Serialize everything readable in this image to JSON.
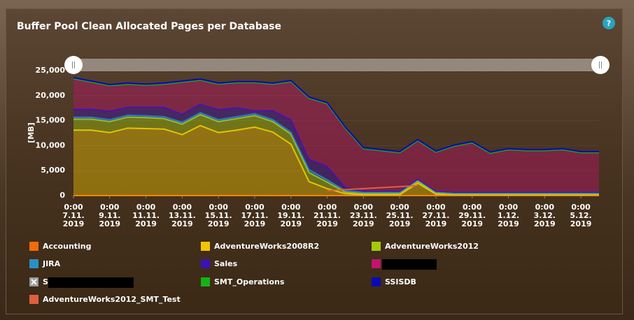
{
  "chart_data": {
    "type": "stacked-area",
    "title": "Buffer Pool Clean Allocated Pages per Database",
    "help": "?",
    "y_label": "[MB]",
    "ylim": [
      0,
      25000
    ],
    "yticks": [
      0,
      {
        "value": 5000,
        "label": "5,000"
      },
      {
        "value": 10000,
        "label": "10,000"
      },
      {
        "value": 15000,
        "label": "15,000"
      },
      {
        "value": 20000,
        "label": "20,000"
      },
      {
        "value": 25000,
        "label": "25,000"
      }
    ],
    "grid": true,
    "x": [
      "2019-11-07",
      "2019-11-08",
      "2019-11-09",
      "2019-11-10",
      "2019-11-11",
      "2019-11-12",
      "2019-11-13",
      "2019-11-14",
      "2019-11-15",
      "2019-11-16",
      "2019-11-17",
      "2019-11-18",
      "2019-11-19",
      "2019-11-20",
      "2019-11-21",
      "2019-11-22",
      "2019-11-23",
      "2019-11-24",
      "2019-11-25",
      "2019-11-26",
      "2019-11-27",
      "2019-11-28",
      "2019-11-29",
      "2019-11-30",
      "2019-12-01",
      "2019-12-02",
      "2019-12-03",
      "2019-12-04",
      "2019-12-05",
      "2019-12-06"
    ],
    "xticks": [
      {
        "value": "2019-11-07",
        "label": "0:00\n7.11.\n2019"
      },
      {
        "value": "2019-11-09",
        "label": "0:00\n9.11.\n2019"
      },
      {
        "value": "2019-11-11",
        "label": "0:00\n11.11.\n2019"
      },
      {
        "value": "2019-11-13",
        "label": "0:00\n13.11.\n2019"
      },
      {
        "value": "2019-11-15",
        "label": "0:00\n15.11.\n2019"
      },
      {
        "value": "2019-11-17",
        "label": "0:00\n17.11.\n2019"
      },
      {
        "value": "2019-11-19",
        "label": "0:00\n19.11.\n2019"
      },
      {
        "value": "2019-11-21",
        "label": "0:00\n21.11.\n2019"
      },
      {
        "value": "2019-11-23",
        "label": "0:00\n23.11.\n2019"
      },
      {
        "value": "2019-11-25",
        "label": "0:00\n25.11.\n2019"
      },
      {
        "value": "2019-11-27",
        "label": "0:00\n27.11.\n2019"
      },
      {
        "value": "2019-11-29",
        "label": "0:00\n29.11.\n2019"
      },
      {
        "value": "2019-12-01",
        "label": "0:00\n1.12.\n2019"
      },
      {
        "value": "2019-12-03",
        "label": "0:00\n3.12.\n2019"
      },
      {
        "value": "2019-12-05",
        "label": "0:00\n5.12.\n2019"
      }
    ],
    "series": [
      {
        "name": "Accounting",
        "color": "#f26b0a",
        "values": [
          0,
          0,
          0,
          0,
          0,
          0,
          0,
          0,
          0,
          0,
          0,
          0,
          0,
          0,
          0,
          0,
          0,
          0,
          0,
          0,
          0,
          0,
          0,
          0,
          0,
          0,
          0,
          0,
          0,
          0
        ]
      },
      {
        "name": "AdventureWorks2008R2",
        "color": "#f2c500",
        "values": [
          13100,
          13100,
          12600,
          13500,
          13400,
          13300,
          12200,
          14000,
          12600,
          13100,
          13700,
          12700,
          10300,
          2800,
          1400,
          400,
          200,
          200,
          200,
          2500,
          300,
          200,
          200,
          200,
          200,
          200,
          200,
          200,
          200,
          200
        ]
      },
      {
        "name": "AdventureWorks2012",
        "color": "#a6c90f",
        "values": [
          2200,
          2200,
          2200,
          2200,
          2200,
          2100,
          2100,
          2200,
          2200,
          2300,
          2300,
          2100,
          2000,
          1800,
          1300,
          300,
          200,
          200,
          200,
          400,
          200,
          100,
          100,
          100,
          100,
          100,
          100,
          100,
          100,
          100
        ]
      },
      {
        "name": "JIRA",
        "color": "#2b8fc4",
        "values": [
          400,
          400,
          400,
          400,
          400,
          400,
          400,
          400,
          400,
          400,
          400,
          400,
          400,
          600,
          500,
          300,
          300,
          300,
          300,
          300,
          300,
          300,
          300,
          300,
          300,
          300,
          300,
          300,
          300,
          300
        ]
      },
      {
        "name": "Sales",
        "color": "#3b12b3",
        "values": [
          1600,
          1600,
          1700,
          1600,
          1700,
          1900,
          1600,
          1700,
          2000,
          1800,
          600,
          1800,
          2500,
          2100,
          2700,
          700,
          200,
          200,
          200,
          100,
          100,
          100,
          100,
          100,
          100,
          100,
          100,
          100,
          100,
          100
        ]
      },
      {
        "name": null,
        "color": "#c2136e",
        "values": [
          6100,
          5400,
          5100,
          4600,
          4400,
          4600,
          6400,
          4800,
          5100,
          5000,
          5600,
          5300,
          7600,
          12200,
          12500,
          11800,
          8500,
          8100,
          7700,
          7700,
          7800,
          9200,
          9900,
          7800,
          8500,
          8300,
          8300,
          8500,
          7900,
          7900
        ]
      },
      {
        "name": "S",
        "color": "#9a9a9a",
        "visible": false
      },
      {
        "name": "SMT_Operations",
        "color": "#14b314",
        "values": [
          0,
          0,
          0,
          0,
          0,
          0,
          0,
          0,
          0,
          0,
          0,
          0,
          0,
          0,
          0,
          0,
          0,
          0,
          0,
          0,
          0,
          0,
          0,
          0,
          0,
          0,
          0,
          0,
          0,
          0
        ]
      },
      {
        "name": "SSISDB",
        "color": "#0a0ab4",
        "values": [
          200,
          200,
          200,
          200,
          200,
          200,
          200,
          200,
          200,
          200,
          200,
          200,
          200,
          200,
          200,
          200,
          200,
          200,
          200,
          200,
          200,
          200,
          200,
          200,
          200,
          200,
          200,
          200,
          200,
          200
        ]
      },
      {
        "name": "AdventureWorks2012_SMT_Test",
        "color": "#e0603e",
        "stack": false,
        "values": [
          null,
          null,
          null,
          null,
          null,
          null,
          null,
          null,
          null,
          null,
          null,
          null,
          null,
          null,
          1000,
          1200,
          1400,
          1600,
          1800,
          2000,
          null,
          null,
          null,
          null,
          null,
          null,
          null,
          null,
          null,
          null
        ]
      }
    ]
  }
}
